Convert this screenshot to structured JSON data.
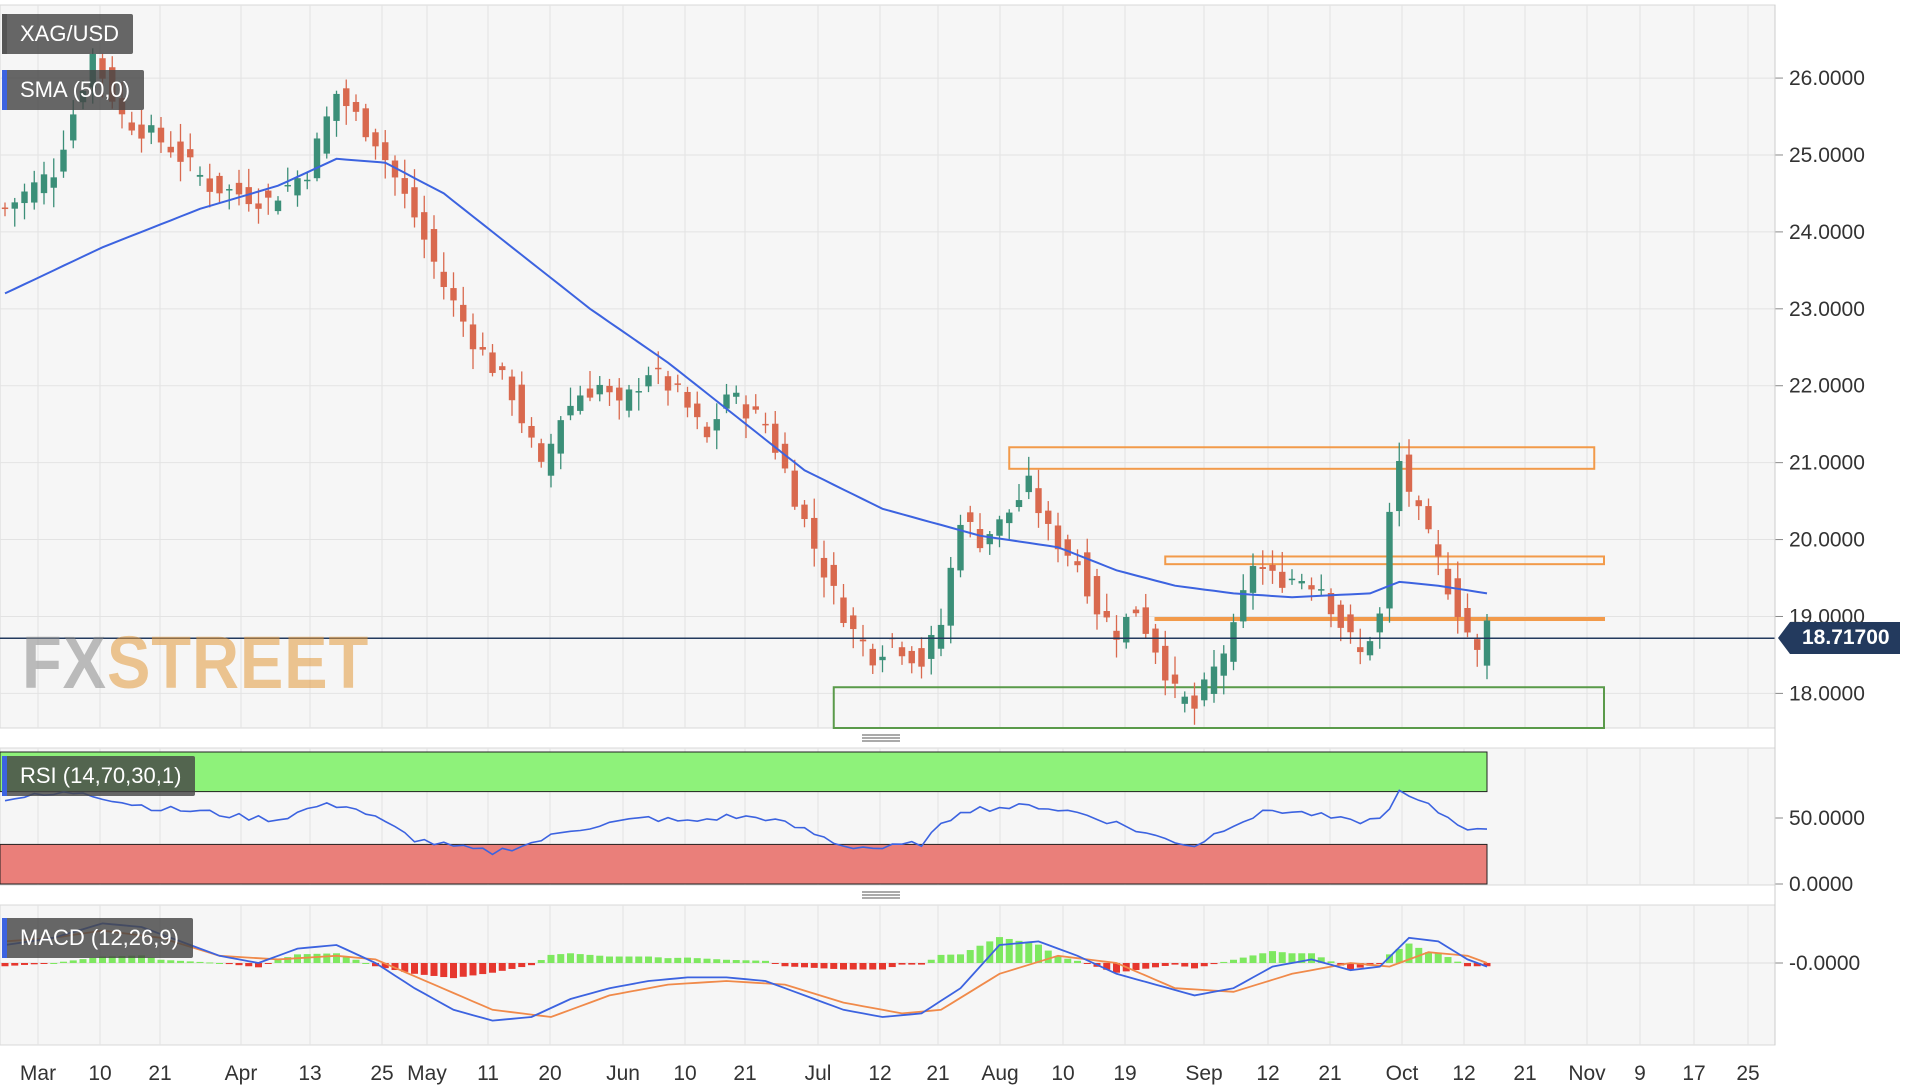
{
  "chart_data": [
    {
      "type": "candlestick",
      "title": "XAG/USD",
      "indicator_label": "SMA (50,0)",
      "current_price": "18.71700",
      "current_price_value": 18.717,
      "y_ticks": [
        "26.0000",
        "25.0000",
        "24.0000",
        "23.0000",
        "22.0000",
        "21.0000",
        "20.0000",
        "19.0000",
        "18.0000"
      ],
      "ylim": [
        17.55,
        26.95
      ],
      "x_ticks": [
        "Mar",
        "10",
        "21",
        "Apr",
        "13",
        "25",
        "May",
        "11",
        "20",
        "Jun",
        "10",
        "21",
        "Jul",
        "12",
        "21",
        "Aug",
        "10",
        "19",
        "Sep",
        "12",
        "21",
        "Oct",
        "12",
        "21",
        "Nov",
        "9",
        "17",
        "25"
      ],
      "price_path": [
        [
          0,
          24.3
        ],
        [
          5,
          24.8
        ],
        [
          9,
          26.3
        ],
        [
          12,
          25.5
        ],
        [
          17,
          25.1
        ],
        [
          21,
          24.6
        ],
        [
          24,
          24.5
        ],
        [
          27,
          24.4
        ],
        [
          31,
          24.8
        ],
        [
          34,
          25.8
        ],
        [
          38,
          25.2
        ],
        [
          42,
          24.2
        ],
        [
          45,
          23.3
        ],
        [
          48,
          22.6
        ],
        [
          52,
          21.9
        ],
        [
          55,
          20.9
        ],
        [
          57,
          21.6
        ],
        [
          59,
          21.9
        ],
        [
          61,
          22.0
        ],
        [
          63,
          21.7
        ],
        [
          66,
          22.2
        ],
        [
          69,
          21.9
        ],
        [
          72,
          21.3
        ],
        [
          74,
          21.9
        ],
        [
          76,
          21.7
        ],
        [
          78,
          21.5
        ],
        [
          80,
          20.9
        ],
        [
          83,
          19.9
        ],
        [
          85,
          19.3
        ],
        [
          87,
          18.8
        ],
        [
          89,
          18.5
        ],
        [
          91,
          18.7
        ],
        [
          94,
          18.4
        ],
        [
          96,
          18.9
        ],
        [
          98,
          20.3
        ],
        [
          100,
          20.0
        ],
        [
          102,
          20.2
        ],
        [
          105,
          20.7
        ],
        [
          107,
          20.1
        ],
        [
          110,
          19.7
        ],
        [
          112,
          19.1
        ],
        [
          114,
          18.8
        ],
        [
          116,
          19.1
        ],
        [
          118,
          18.6
        ],
        [
          120,
          18.0
        ],
        [
          122,
          17.8
        ],
        [
          124,
          18.3
        ],
        [
          126,
          18.8
        ],
        [
          128,
          19.7
        ],
        [
          130,
          19.5
        ],
        [
          133,
          19.5
        ],
        [
          135,
          19.4
        ],
        [
          137,
          18.9
        ],
        [
          139,
          18.5
        ],
        [
          141,
          19.0
        ],
        [
          142,
          20.3
        ],
        [
          143,
          21.0
        ],
        [
          145,
          20.3
        ],
        [
          147,
          19.7
        ],
        [
          149,
          19.1
        ],
        [
          151,
          18.5
        ],
        [
          152,
          18.9
        ]
      ],
      "sma_path": [
        [
          0,
          23.2
        ],
        [
          10,
          23.8
        ],
        [
          20,
          24.3
        ],
        [
          28,
          24.6
        ],
        [
          34,
          24.95
        ],
        [
          39,
          24.9
        ],
        [
          45,
          24.5
        ],
        [
          52,
          23.8
        ],
        [
          60,
          23.0
        ],
        [
          68,
          22.3
        ],
        [
          75,
          21.6
        ],
        [
          82,
          20.9
        ],
        [
          90,
          20.4
        ],
        [
          100,
          20.05
        ],
        [
          108,
          19.9
        ],
        [
          114,
          19.6
        ],
        [
          120,
          19.4
        ],
        [
          126,
          19.3
        ],
        [
          132,
          19.25
        ],
        [
          140,
          19.3
        ],
        [
          143,
          19.45
        ],
        [
          147,
          19.4
        ],
        [
          152,
          19.3
        ]
      ],
      "zones": [
        {
          "kind": "resistance",
          "low": 20.92,
          "high": 21.2,
          "from_index": 103,
          "to_index": 163,
          "color": "#f29a4a"
        },
        {
          "kind": "resistance",
          "low": 19.68,
          "high": 19.78,
          "from_index": 119,
          "to_index": 164,
          "color": "#f29a4a"
        },
        {
          "kind": "resistance",
          "low": 18.96,
          "high": 18.98,
          "from_index": 118,
          "to_index": 164,
          "color": "#f29a4a"
        },
        {
          "kind": "support",
          "low": 17.55,
          "high": 18.08,
          "from_index": 85,
          "to_index": 164,
          "color": "#5a9a4a"
        }
      ],
      "colors": {
        "up": "#3b8f78",
        "down": "#d9694e",
        "sma": "#3c63e0",
        "price_line": "#233a5e"
      }
    },
    {
      "type": "line",
      "title": "RSI (14,70,30,1)",
      "y_ticks": [
        "50.0000",
        "0.0000"
      ],
      "ylim": [
        0,
        100
      ],
      "overbought": 70,
      "oversold": 30,
      "values_path": [
        [
          0,
          65
        ],
        [
          4,
          67
        ],
        [
          8,
          70
        ],
        [
          12,
          62
        ],
        [
          16,
          57
        ],
        [
          20,
          55
        ],
        [
          24,
          51
        ],
        [
          28,
          49
        ],
        [
          32,
          59
        ],
        [
          35,
          60
        ],
        [
          38,
          50
        ],
        [
          42,
          34
        ],
        [
          46,
          28
        ],
        [
          50,
          24
        ],
        [
          54,
          31
        ],
        [
          58,
          41
        ],
        [
          62,
          46
        ],
        [
          66,
          50
        ],
        [
          70,
          47
        ],
        [
          74,
          51
        ],
        [
          78,
          50
        ],
        [
          82,
          41
        ],
        [
          86,
          29
        ],
        [
          90,
          27
        ],
        [
          94,
          31
        ],
        [
          98,
          56
        ],
        [
          102,
          58
        ],
        [
          106,
          59
        ],
        [
          110,
          54
        ],
        [
          114,
          46
        ],
        [
          118,
          36
        ],
        [
          122,
          29
        ],
        [
          126,
          46
        ],
        [
          130,
          56
        ],
        [
          134,
          53
        ],
        [
          138,
          47
        ],
        [
          141,
          49
        ],
        [
          143,
          69
        ],
        [
          146,
          59
        ],
        [
          149,
          46
        ],
        [
          151,
          40
        ],
        [
          152,
          43
        ]
      ],
      "colors": {
        "line": "#3c63e0",
        "overbought_fill": "#8ef27a",
        "oversold_fill": "#ea7f7a"
      }
    },
    {
      "type": "histogram",
      "title": "MACD (12,26,9)",
      "y_ticks": [
        "-0.0000"
      ],
      "ylim": [
        -0.9,
        0.65
      ],
      "macd_path": [
        [
          0,
          0.25
        ],
        [
          5,
          0.35
        ],
        [
          10,
          0.55
        ],
        [
          14,
          0.5
        ],
        [
          18,
          0.3
        ],
        [
          22,
          0.1
        ],
        [
          26,
          0.0
        ],
        [
          30,
          0.2
        ],
        [
          34,
          0.25
        ],
        [
          38,
          0.0
        ],
        [
          42,
          -0.35
        ],
        [
          46,
          -0.65
        ],
        [
          50,
          -0.8
        ],
        [
          54,
          -0.75
        ],
        [
          58,
          -0.5
        ],
        [
          62,
          -0.35
        ],
        [
          66,
          -0.25
        ],
        [
          70,
          -0.2
        ],
        [
          74,
          -0.2
        ],
        [
          78,
          -0.25
        ],
        [
          82,
          -0.45
        ],
        [
          86,
          -0.65
        ],
        [
          90,
          -0.75
        ],
        [
          94,
          -0.7
        ],
        [
          98,
          -0.35
        ],
        [
          102,
          0.25
        ],
        [
          106,
          0.3
        ],
        [
          110,
          0.1
        ],
        [
          114,
          -0.15
        ],
        [
          118,
          -0.3
        ],
        [
          122,
          -0.45
        ],
        [
          126,
          -0.35
        ],
        [
          130,
          -0.05
        ],
        [
          134,
          0.05
        ],
        [
          138,
          -0.1
        ],
        [
          141,
          -0.05
        ],
        [
          144,
          0.35
        ],
        [
          147,
          0.3
        ],
        [
          150,
          0.05
        ],
        [
          152,
          -0.05
        ]
      ],
      "signal_path": [
        [
          0,
          0.3
        ],
        [
          5,
          0.35
        ],
        [
          10,
          0.45
        ],
        [
          16,
          0.35
        ],
        [
          22,
          0.1
        ],
        [
          28,
          0.05
        ],
        [
          34,
          0.1
        ],
        [
          38,
          0.05
        ],
        [
          44,
          -0.3
        ],
        [
          50,
          -0.65
        ],
        [
          56,
          -0.75
        ],
        [
          62,
          -0.45
        ],
        [
          68,
          -0.3
        ],
        [
          74,
          -0.25
        ],
        [
          80,
          -0.3
        ],
        [
          86,
          -0.55
        ],
        [
          92,
          -0.7
        ],
        [
          96,
          -0.65
        ],
        [
          102,
          -0.15
        ],
        [
          108,
          0.1
        ],
        [
          114,
          0.0
        ],
        [
          120,
          -0.35
        ],
        [
          126,
          -0.4
        ],
        [
          132,
          -0.15
        ],
        [
          138,
          0.0
        ],
        [
          142,
          -0.05
        ],
        [
          146,
          0.15
        ],
        [
          150,
          0.1
        ],
        [
          152,
          0.0
        ]
      ],
      "colors": {
        "macd": "#3c63e0",
        "signal": "#f08a4a",
        "hist_pos": "#7ee860",
        "hist_neg": "#e6372e"
      }
    }
  ]
}
